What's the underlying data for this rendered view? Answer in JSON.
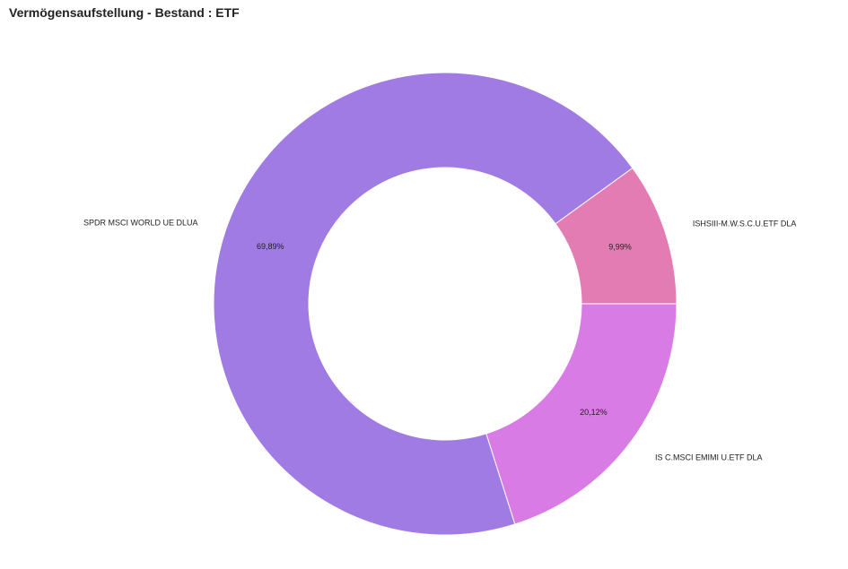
{
  "title": "Vermögensaufstellung - Bestand : ETF",
  "chart_data": {
    "type": "pie",
    "donut": true,
    "title": "Vermögensaufstellung - Bestand : ETF",
    "slices": [
      {
        "label": "ISHSIII-M.W.S.C.U.ETF DLA",
        "value": 9.99,
        "value_label": "9,99%",
        "color": "#e47cb4"
      },
      {
        "label": "SPDR MSCI WORLD UE DLUA",
        "value": 69.89,
        "value_label": "69,89%",
        "color": "#a07be4"
      },
      {
        "label": "IS C.MSCI EMIMI U.ETF DLA",
        "value": 20.12,
        "value_label": "20,12%",
        "color": "#d87be4"
      }
    ]
  }
}
